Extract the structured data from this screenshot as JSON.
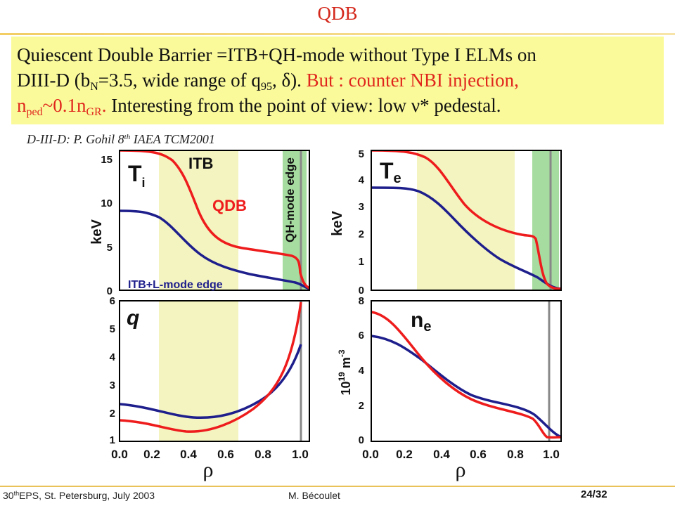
{
  "title": "QDB",
  "summary": {
    "l1": "Quiescent Double Barrier =ITB+QH-mode without Type I ELMs on",
    "l2a": "DIII-D (b",
    "l2_sub1": "N",
    "l2b": "=3.5, wide range of q",
    "l2_sub2": "95",
    "l2c": ", δ). ",
    "l2_red": "But : counter NBI injection,",
    "l3_red_a": "n",
    "l3_sub1": "ped",
    "l3_red_b": "~0.1n",
    "l3_sub2": "GR",
    "l3_red_c": ".",
    "l3b": " Interesting from the point of view: low ν* pedestal."
  },
  "credit": {
    "a": "D-III-D: P. Gohil 8",
    "sup": "th",
    "b": " IAEA TCM2001"
  },
  "figure": {
    "colors": {
      "red": "#ee1c1c",
      "blue": "#1e1e8c",
      "itb_band": "#f4f4c0",
      "qh_band": "#a7dca0",
      "grey_line": "#888888"
    },
    "panels": {
      "ti": {
        "name": "T",
        "sub": "i",
        "ylabel": "keV",
        "yticks": [
          "15",
          "10",
          "5",
          "0"
        ],
        "band_label": "ITB",
        "red_label": "QDB",
        "edge_label": "QH-mode edge",
        "blue_label": "ITB+L-mode edge"
      },
      "te": {
        "name": "T",
        "sub": "e",
        "ylabel": "keV",
        "yticks": [
          "5",
          "4",
          "3",
          "2",
          "1",
          "0"
        ]
      },
      "q": {
        "name": "q",
        "yticks": [
          "6",
          "5",
          "4",
          "3",
          "2",
          "1"
        ]
      },
      "ne": {
        "name": "n",
        "sub": "e",
        "ylabel_a": "10",
        "ylabel_sup": "19",
        "ylabel_b": " m",
        "ylabel_sup2": "-3",
        "yticks": [
          "8",
          "6",
          "4",
          "2",
          "0"
        ]
      }
    },
    "xticks": [
      "0.0",
      "0.2",
      "0.4",
      "0.6",
      "0.8",
      "1.0"
    ],
    "xlabel": "ρ"
  },
  "footer": {
    "left_sup": "th",
    "left_a": "30",
    "left_b": "EPS, St. Petersburg, July 2003",
    "center": "M. Bécoulet",
    "page": "24/32"
  }
}
